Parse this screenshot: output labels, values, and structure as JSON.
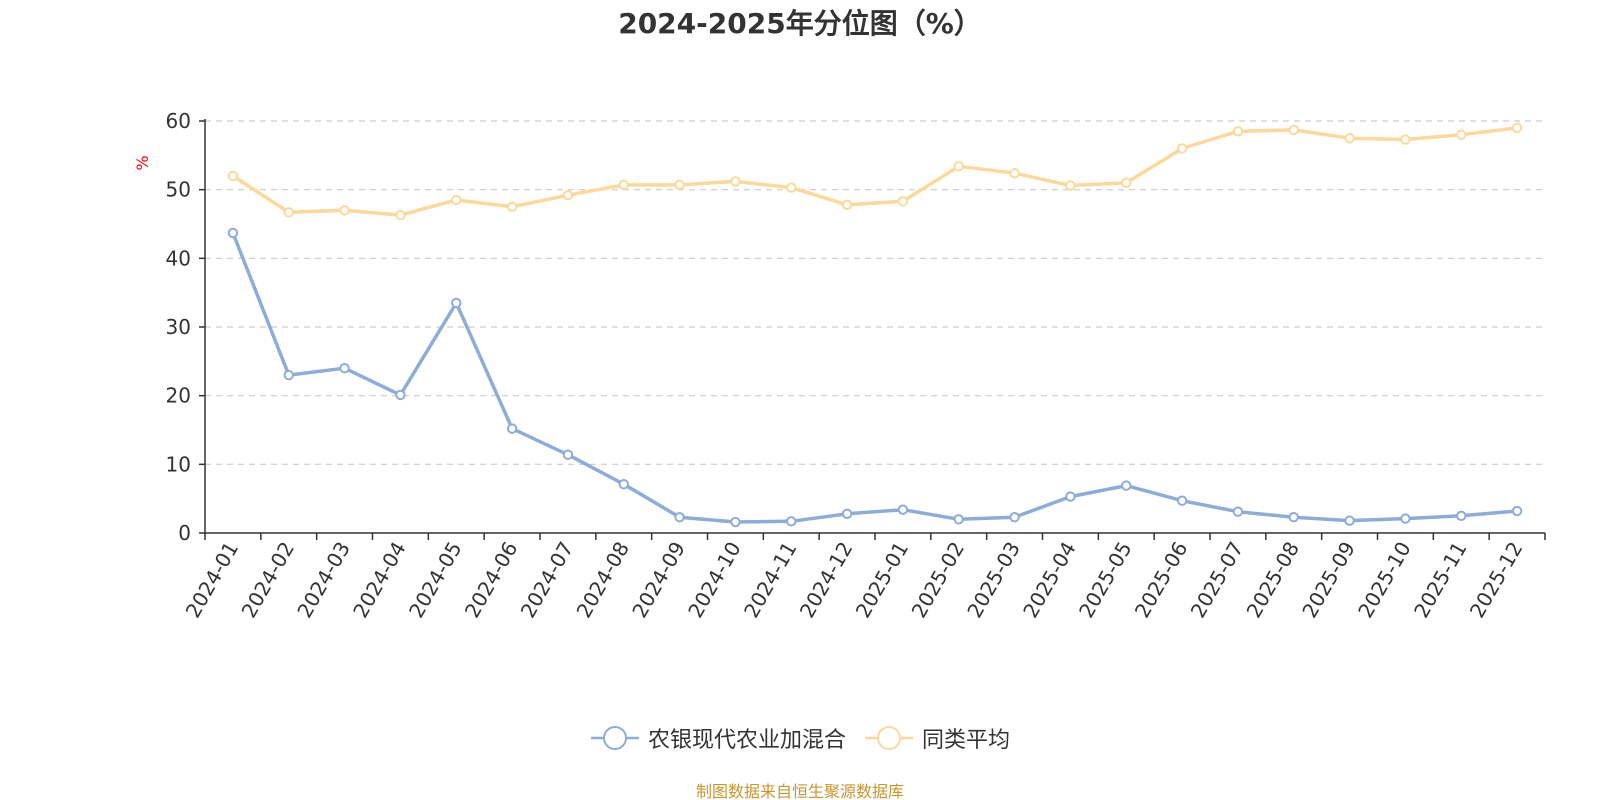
{
  "chart_data": {
    "type": "line",
    "title": "2024-2025年分位图（%）",
    "ylabel": "%",
    "xlabel": "",
    "ylim": [
      0,
      60
    ],
    "yticks": [
      0,
      10,
      20,
      30,
      40,
      50,
      60
    ],
    "grid": true,
    "legend_position": "bottom-center",
    "categories": [
      "2024-01",
      "2024-02",
      "2024-03",
      "2024-04",
      "2024-05",
      "2024-06",
      "2024-07",
      "2024-08",
      "2024-09",
      "2024-10",
      "2024-11",
      "2024-12",
      "2025-01",
      "2025-02",
      "2025-03",
      "2025-04",
      "2025-05",
      "2025-06",
      "2025-07",
      "2025-08",
      "2025-09",
      "2025-10",
      "2025-11",
      "2025-12"
    ],
    "series": [
      {
        "name": "农银现代农业加混合",
        "color": "#8eacd8",
        "values": [
          43.7,
          23.0,
          24.0,
          20.1,
          33.5,
          15.2,
          11.4,
          7.1,
          2.3,
          1.6,
          1.7,
          2.8,
          3.4,
          2.0,
          2.3,
          5.3,
          6.9,
          4.7,
          3.1,
          2.3,
          1.8,
          2.1,
          2.5,
          3.2
        ]
      },
      {
        "name": "同类平均",
        "color": "#fcd99a",
        "values": [
          52.0,
          46.7,
          47.0,
          46.3,
          48.5,
          47.5,
          49.2,
          50.7,
          50.7,
          51.2,
          50.3,
          47.8,
          48.3,
          53.4,
          52.4,
          50.6,
          51.0,
          56.0,
          58.5,
          58.7,
          57.5,
          57.3,
          58.0,
          59.0
        ]
      }
    ]
  },
  "colors": {
    "unit_label": "#ff0000",
    "source_note": "#c8962e",
    "axis": "#333333"
  },
  "source_note": "制图数据来自恒生聚源数据库"
}
